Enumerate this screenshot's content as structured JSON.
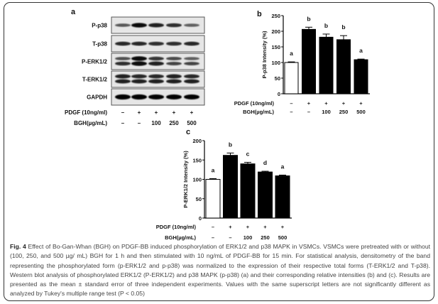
{
  "panel_a": {
    "label": "a",
    "rows": [
      "P-p38",
      "T-p38",
      "P-ERK1/2",
      "T-ERK1/2",
      "GAPDH"
    ],
    "pdgf_label": "PDGF (10ng/ml)",
    "bgh_label": "BGH(µg/mL)",
    "pdgf": [
      "–",
      "+",
      "+",
      "+",
      "+"
    ],
    "bgh": [
      "–",
      "–",
      "100",
      "250",
      "500"
    ]
  },
  "chart_data": [
    {
      "panel": "b",
      "type": "bar",
      "ylabel": "P-p38 Intensity (%)",
      "ylim": [
        0,
        250
      ],
      "yticks": [
        0,
        50,
        100,
        150,
        200,
        250
      ],
      "categories": [
        "PDGF – / BGH –",
        "PDGF + / BGH –",
        "PDGF + / BGH 100",
        "PDGF + / BGH 250",
        "PDGF + / BGH 500"
      ],
      "values": [
        100,
        206,
        181,
        173,
        109
      ],
      "errors": [
        2,
        7,
        10,
        13,
        2
      ],
      "letters": [
        "a",
        "b",
        "b",
        "b",
        "a"
      ],
      "bar_colors": [
        "#ffffff",
        "#000000",
        "#000000",
        "#000000",
        "#000000"
      ],
      "pdgf_label": "PDGF (10ng/ml)",
      "bgh_label": "BGH(µg/mL)",
      "pdgf": [
        "–",
        "+",
        "+",
        "+",
        "+"
      ],
      "bgh": [
        "–",
        "–",
        "100",
        "250",
        "500"
      ]
    },
    {
      "panel": "c",
      "type": "bar",
      "ylabel": "P-ERK1/2 Intensity (%)",
      "ylim": [
        0,
        200
      ],
      "yticks": [
        0,
        50,
        100,
        150,
        200
      ],
      "categories": [
        "PDGF – / BGH –",
        "PDGF + / BGH –",
        "PDGF + / BGH 100",
        "PDGF + / BGH 250",
        "PDGF + / BGH 500"
      ],
      "values": [
        100,
        162,
        140,
        119,
        109
      ],
      "errors": [
        2,
        6,
        4,
        2,
        2
      ],
      "letters": [
        "a",
        "b",
        "c",
        "d",
        "a"
      ],
      "bar_colors": [
        "#ffffff",
        "#000000",
        "#000000",
        "#000000",
        "#000000"
      ],
      "pdgf_label": "PDGF (10ng/ml)",
      "bgh_label": "BGH(µg/mL)",
      "pdgf": [
        "–",
        "+",
        "+",
        "+",
        "+"
      ],
      "bgh": [
        "–",
        "–",
        "100",
        "250",
        "500"
      ]
    }
  ],
  "caption": {
    "fig_label": "Fig. 4",
    "text": "Effect of Bo-Gan-Whan (BGH) on PDGF-BB induced phosphorylation of ERK1/2 and p38 MAPK in VSMCs. VSMCs were pretreated with or without (100, 250, and 500 µg/ mL) BGH for 1 h and then stimulated with 10 ng/mL of PDGF-BB for 15 min. For statistical analysis, densitometry of the band representing the phosphorylated form (p-ERK1/2 and p-p38) was normalized to the expression of their respective total forms (T-ERK1/2 and T-p38). Western blot analysis of phosphorylated ERK1/2 (P-ERK1/2) and p38 MAPK (p-p38) (a) and their corresponding relative intensities (b) and (c). Results are presented as the mean ± standard error of three independent experiments. Values with the same superscript letters are not significantly different as analyzed by Tukey's multiple range test (P < 0.05)"
  }
}
